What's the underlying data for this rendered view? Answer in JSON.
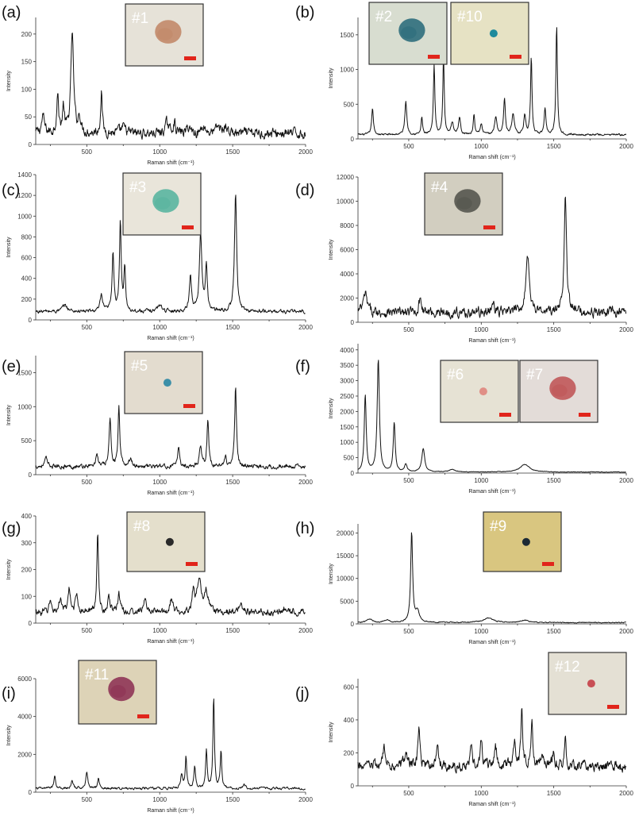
{
  "chart_data": [
    {
      "type": "line",
      "panel": "(a)",
      "xlabel": "Raman shift (cm⁻¹)",
      "ylabel": "Intensity",
      "xlim": [
        150,
        2000
      ],
      "ylim": [
        0,
        230
      ],
      "x_ticks": [
        500,
        1000,
        1500,
        2000
      ],
      "y_ticks": [
        0,
        50,
        100,
        150,
        200
      ],
      "samples": [
        {
          "label": "#1",
          "color": "#c28a6a",
          "bg": "#e6e2d8",
          "spot": "blob"
        }
      ],
      "baseline": 20,
      "noise": 10,
      "peaks": [
        [
          200,
          30,
          12
        ],
        [
          300,
          70,
          8
        ],
        [
          340,
          45,
          8
        ],
        [
          400,
          182,
          11
        ],
        [
          450,
          30,
          10
        ],
        [
          600,
          75,
          7
        ],
        [
          750,
          10,
          20
        ],
        [
          1050,
          18,
          15
        ],
        [
          1100,
          20,
          10
        ],
        [
          1200,
          12,
          15
        ],
        [
          1300,
          14,
          15
        ],
        [
          1400,
          12,
          15
        ],
        [
          1450,
          12,
          15
        ]
      ]
    },
    {
      "type": "line",
      "panel": "(b)",
      "xlabel": "Raman shift (cm⁻¹)",
      "ylabel": "Intensity",
      "xlim": [
        150,
        2000
      ],
      "ylim": [
        0,
        1750
      ],
      "x_ticks": [
        500,
        1000,
        1500,
        2000
      ],
      "y_ticks": [
        0,
        500,
        1000,
        1500
      ],
      "samples": [
        {
          "label": "#2",
          "color": "#2f6e7c",
          "bg": "#d8ddd0",
          "spot": "blob"
        },
        {
          "label": "#10",
          "color": "#1e8a9c",
          "bg": "#e6e2c4",
          "spot": "dot"
        }
      ],
      "baseline": 60,
      "noise": 15,
      "peaks": [
        [
          250,
          380,
          7
        ],
        [
          480,
          480,
          8
        ],
        [
          590,
          250,
          6
        ],
        [
          675,
          1000,
          6
        ],
        [
          740,
          1100,
          6
        ],
        [
          800,
          180,
          10
        ],
        [
          850,
          250,
          8
        ],
        [
          950,
          300,
          6
        ],
        [
          1000,
          150,
          8
        ],
        [
          1100,
          250,
          10
        ],
        [
          1160,
          520,
          7
        ],
        [
          1220,
          300,
          10
        ],
        [
          1300,
          280,
          8
        ],
        [
          1345,
          1100,
          6
        ],
        [
          1440,
          380,
          7
        ],
        [
          1520,
          1580,
          6
        ]
      ]
    },
    {
      "type": "line",
      "panel": "(c)",
      "xlabel": "Raman shift (cm⁻¹)",
      "ylabel": "Intensity",
      "xlim": [
        150,
        2000
      ],
      "ylim": [
        0,
        1400
      ],
      "x_ticks": [
        500,
        1000,
        1500,
        2000
      ],
      "y_ticks": [
        0,
        200,
        400,
        600,
        800,
        1000,
        1200,
        1400
      ],
      "samples": [
        {
          "label": "#3",
          "color": "#5ab5a0",
          "bg": "#e9e5da",
          "spot": "blob"
        }
      ],
      "baseline": 80,
      "noise": 20,
      "peaks": [
        [
          350,
          60,
          20
        ],
        [
          600,
          150,
          10
        ],
        [
          680,
          560,
          8
        ],
        [
          730,
          840,
          7
        ],
        [
          760,
          420,
          7
        ],
        [
          1000,
          60,
          20
        ],
        [
          1210,
          340,
          9
        ],
        [
          1280,
          740,
          10
        ],
        [
          1320,
          420,
          8
        ],
        [
          1520,
          1130,
          9
        ]
      ]
    },
    {
      "type": "line",
      "panel": "(d)",
      "xlabel": "Raman shift (cm⁻¹)",
      "ylabel": "Intensity",
      "xlim": [
        150,
        2000
      ],
      "ylim": [
        0,
        12000
      ],
      "x_ticks": [
        500,
        1000,
        1500,
        2000
      ],
      "y_ticks": [
        0,
        2000,
        4000,
        6000,
        8000,
        10000,
        12000
      ],
      "samples": [
        {
          "label": "#4",
          "color": "#55574f",
          "bg": "#d2cec0",
          "spot": "blob"
        }
      ],
      "baseline": 800,
      "noise": 450,
      "peaks": [
        [
          200,
          1500,
          15
        ],
        [
          580,
          1300,
          10
        ],
        [
          1080,
          600,
          15
        ],
        [
          1320,
          4500,
          16
        ],
        [
          1580,
          10000,
          10
        ]
      ]
    },
    {
      "type": "line",
      "panel": "(e)",
      "xlabel": "Raman shift (cm⁻¹)",
      "ylabel": "Intensity",
      "xlim": [
        150,
        2000
      ],
      "ylim": [
        0,
        1750
      ],
      "x_ticks": [
        500,
        1000,
        1500,
        2000
      ],
      "y_ticks": [
        0,
        500,
        1000,
        1500
      ],
      "samples": [
        {
          "label": "#5",
          "color": "#3c8fa8",
          "bg": "#e3dccf",
          "spot": "dot"
        }
      ],
      "baseline": 120,
      "noise": 35,
      "peaks": [
        [
          220,
          120,
          10
        ],
        [
          570,
          200,
          8
        ],
        [
          660,
          700,
          8
        ],
        [
          720,
          850,
          7
        ],
        [
          800,
          100,
          15
        ],
        [
          1130,
          300,
          7
        ],
        [
          1280,
          300,
          10
        ],
        [
          1330,
          700,
          7
        ],
        [
          1450,
          150,
          8
        ],
        [
          1520,
          1200,
          7
        ]
      ]
    },
    {
      "type": "line",
      "panel": "(f)",
      "xlabel": "Raman shift (cm⁻¹)",
      "ylabel": "Intensity",
      "xlim": [
        150,
        2000
      ],
      "ylim": [
        0,
        4200
      ],
      "x_ticks": [
        500,
        1000,
        1500,
        2000
      ],
      "y_ticks": [
        0,
        500,
        1000,
        1500,
        2000,
        2500,
        3000,
        3500,
        4000
      ],
      "samples": [
        {
          "label": "#6",
          "color": "#e08f86",
          "bg": "#e6e2d4",
          "spot": "dot"
        },
        {
          "label": "#7",
          "color": "#c0585a",
          "bg": "#e3dcd8",
          "spot": "blob"
        }
      ],
      "baseline": 30,
      "noise": 12,
      "peaks": [
        [
          200,
          2500,
          8
        ],
        [
          290,
          3650,
          9
        ],
        [
          400,
          1600,
          8
        ],
        [
          480,
          250,
          10
        ],
        [
          600,
          750,
          12
        ],
        [
          800,
          80,
          30
        ],
        [
          1300,
          250,
          40
        ]
      ]
    },
    {
      "type": "line",
      "panel": "(g)",
      "xlabel": "Raman shift (cm⁻¹)",
      "ylabel": "Intensity",
      "xlim": [
        150,
        2000
      ],
      "ylim": [
        0,
        400
      ],
      "x_ticks": [
        500,
        1000,
        1500,
        2000
      ],
      "y_ticks": [
        0,
        100,
        200,
        300,
        400
      ],
      "samples": [
        {
          "label": "#8",
          "color": "#2a2a2a",
          "bg": "#e4dfcc",
          "spot": "dot"
        }
      ],
      "baseline": 40,
      "noise": 14,
      "peaks": [
        [
          250,
          40,
          10
        ],
        [
          320,
          55,
          10
        ],
        [
          380,
          80,
          9
        ],
        [
          430,
          75,
          9
        ],
        [
          575,
          300,
          7
        ],
        [
          650,
          50,
          10
        ],
        [
          720,
          70,
          10
        ],
        [
          900,
          40,
          15
        ],
        [
          1080,
          50,
          10
        ],
        [
          1230,
          70,
          10
        ],
        [
          1270,
          125,
          18
        ],
        [
          1320,
          70,
          15
        ],
        [
          1560,
          25,
          15
        ],
        [
          1850,
          15,
          20
        ]
      ]
    },
    {
      "type": "line",
      "panel": "(h)",
      "xlabel": "Raman shift (cm⁻¹)",
      "ylabel": "Intensity",
      "xlim": [
        150,
        2000
      ],
      "ylim": [
        0,
        22000
      ],
      "x_ticks": [
        500,
        1000,
        1500,
        2000
      ],
      "y_ticks": [
        0,
        5000,
        10000,
        15000,
        20000
      ],
      "samples": [
        {
          "label": "#9",
          "color": "#1d2a35",
          "bg": "#d9c680",
          "spot": "dot"
        }
      ],
      "baseline": 300,
      "noise": 120,
      "peaks": [
        [
          230,
          800,
          20
        ],
        [
          350,
          500,
          20
        ],
        [
          520,
          19700,
          8
        ],
        [
          560,
          2500,
          15
        ],
        [
          1050,
          1000,
          40
        ],
        [
          1300,
          500,
          30
        ]
      ]
    },
    {
      "type": "line",
      "panel": "(i)",
      "xlabel": "Raman shift (cm⁻¹)",
      "ylabel": "Intensity",
      "xlim": [
        150,
        2000
      ],
      "ylim": [
        0,
        6000
      ],
      "x_ticks": [
        500,
        1000,
        1500,
        2000
      ],
      "y_ticks": [
        0,
        2000,
        4000,
        6000
      ],
      "samples": [
        {
          "label": "#11",
          "color": "#8f3556",
          "bg": "#ddd3b7",
          "spot": "blob"
        }
      ],
      "baseline": 200,
      "noise": 70,
      "peaks": [
        [
          280,
          700,
          7
        ],
        [
          400,
          400,
          8
        ],
        [
          500,
          900,
          8
        ],
        [
          580,
          500,
          8
        ],
        [
          1150,
          700,
          8
        ],
        [
          1180,
          1700,
          6
        ],
        [
          1240,
          1200,
          7
        ],
        [
          1320,
          2000,
          6
        ],
        [
          1370,
          4800,
          6
        ],
        [
          1420,
          2000,
          6
        ],
        [
          1580,
          200,
          10
        ]
      ]
    },
    {
      "type": "line",
      "panel": "(j)",
      "xlabel": "Raman shift (cm⁻¹)",
      "ylabel": "Intensity",
      "xlim": [
        150,
        2000
      ],
      "ylim": [
        0,
        650
      ],
      "x_ticks": [
        500,
        1000,
        1500,
        2000
      ],
      "y_ticks": [
        0,
        200,
        400,
        600
      ],
      "samples": [
        {
          "label": "#12",
          "color": "#c84f55",
          "bg": "#e4e0d4",
          "spot": "dot"
        }
      ],
      "baseline": 120,
      "noise": 35,
      "peaks": [
        [
          330,
          100,
          12
        ],
        [
          480,
          80,
          12
        ],
        [
          570,
          230,
          8
        ],
        [
          700,
          100,
          10
        ],
        [
          930,
          120,
          8
        ],
        [
          1000,
          170,
          8
        ],
        [
          1100,
          100,
          10
        ],
        [
          1230,
          160,
          8
        ],
        [
          1280,
          380,
          7
        ],
        [
          1350,
          300,
          7
        ],
        [
          1420,
          100,
          8
        ],
        [
          1500,
          110,
          8
        ],
        [
          1580,
          200,
          6
        ]
      ]
    }
  ]
}
